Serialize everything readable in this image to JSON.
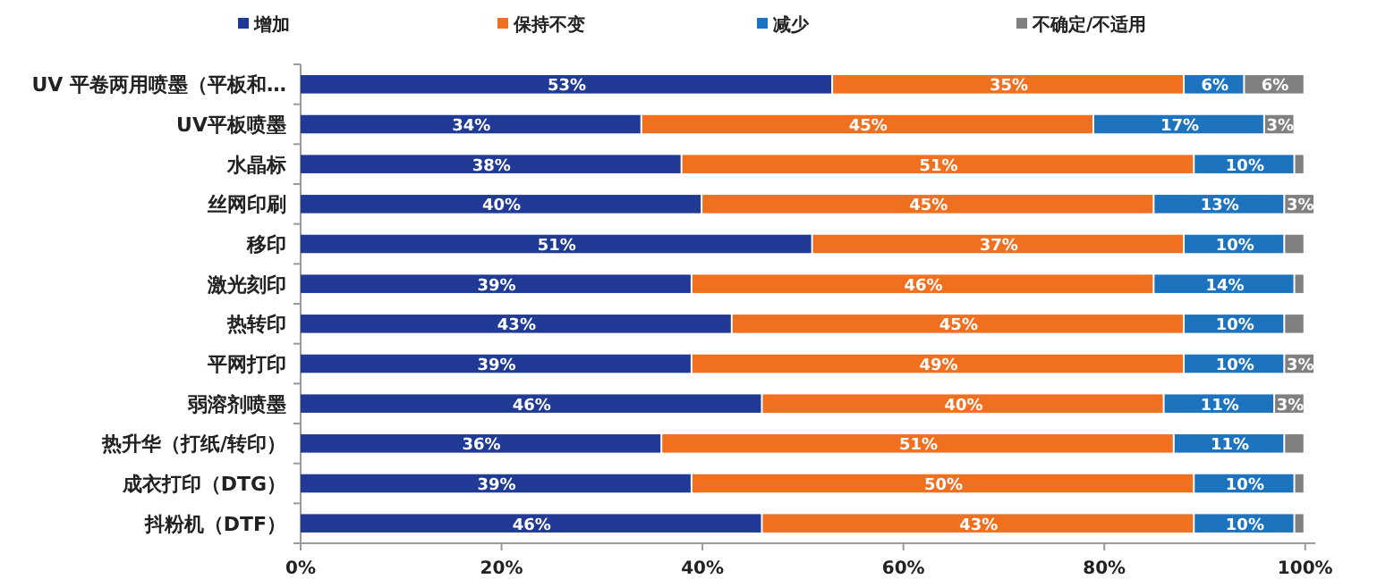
{
  "chart_data": {
    "type": "bar",
    "orientation": "horizontal",
    "stacked": true,
    "legend": "top",
    "grid": false,
    "categories": [
      "UV 平卷两用喷墨（平板和…",
      "UV平板喷墨",
      "水晶标",
      "丝网印刷",
      "移印",
      "激光刻印",
      "热转印",
      "平网打印",
      "弱溶剂喷墨",
      "热升华（打纸/转印）",
      "成衣打印（DTG）",
      "抖粉机（DTF）"
    ],
    "xlim": [
      0,
      101
    ],
    "xticks": [
      {
        "value": 0,
        "label": "0%"
      },
      {
        "value": 20,
        "label": "20%"
      },
      {
        "value": 40,
        "label": "40%"
      },
      {
        "value": 60,
        "label": "60%"
      },
      {
        "value": 80,
        "label": "80%"
      },
      {
        "value": 100,
        "label": "100%"
      }
    ],
    "series": [
      {
        "name": "增加",
        "color": "#203a96",
        "values": [
          53,
          34,
          38,
          40,
          51,
          39,
          43,
          39,
          46,
          36,
          39,
          46
        ],
        "value_labels": [
          "53%",
          "34%",
          "38%",
          "40%",
          "51%",
          "39%",
          "43%",
          "39%",
          "46%",
          "36%",
          "39%",
          "46%"
        ]
      },
      {
        "name": "保持不变",
        "color": "#f07020",
        "values": [
          35,
          45,
          51,
          45,
          37,
          46,
          45,
          49,
          40,
          51,
          50,
          43
        ],
        "value_labels": [
          "35%",
          "45%",
          "51%",
          "45%",
          "37%",
          "46%",
          "45%",
          "49%",
          "40%",
          "51%",
          "50%",
          "43%"
        ]
      },
      {
        "name": "减少",
        "color": "#1e73be",
        "values": [
          6,
          17,
          10,
          13,
          10,
          14,
          10,
          10,
          11,
          11,
          10,
          10
        ],
        "value_labels": [
          "6%",
          "17%",
          "10%",
          "13%",
          "10%",
          "14%",
          "10%",
          "10%",
          "11%",
          "11%",
          "10%",
          "10%"
        ]
      },
      {
        "name": "不确定/不适用",
        "color": "#808080",
        "values": [
          6,
          3,
          1,
          3,
          2,
          1,
          2,
          3,
          3,
          2,
          1,
          1
        ],
        "value_labels": [
          "6%",
          "3%",
          null,
          "3%",
          null,
          null,
          null,
          "3%",
          "3%",
          null,
          null,
          null
        ]
      }
    ]
  }
}
